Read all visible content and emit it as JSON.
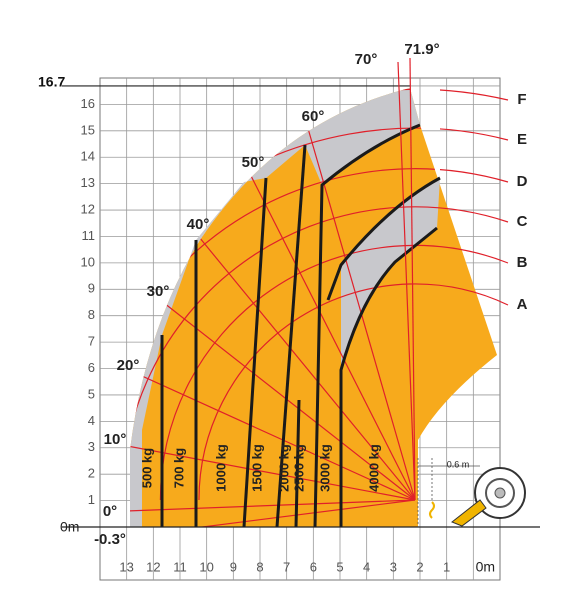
{
  "chart_data": {
    "type": "load-chart",
    "xlim": [
      14,
      -1
    ],
    "ylim": [
      0,
      17
    ],
    "xticks": [
      13,
      12,
      11,
      10,
      9,
      8,
      7,
      6,
      5,
      4,
      3,
      2,
      1,
      {
        "value": 0,
        "label": "0m"
      }
    ],
    "yticks": [
      {
        "value": 0,
        "label": "0m"
      },
      1,
      2,
      3,
      4,
      5,
      6,
      7,
      8,
      9,
      10,
      11,
      12,
      13,
      14,
      15,
      16,
      {
        "value": 16.7,
        "label": "16.7"
      }
    ],
    "grid": true,
    "angle_labels": [
      "-0.3°",
      "0°",
      "10°",
      "20°",
      "30°",
      "40°",
      "50°",
      "60°",
      "70°",
      "71.9°"
    ],
    "boom_labels": [
      "A",
      "B",
      "C",
      "D",
      "E",
      "F"
    ],
    "load_labels": [
      "500 kg",
      "700 kg",
      "1000 kg",
      "1500 kg",
      "2000 kg",
      "2500 kg",
      "3000 kg",
      "4000 kg"
    ],
    "annotation": "0.6 m",
    "load_color": "#f7aa1c",
    "reduced_color": "#c8c8cc",
    "line_color": "#e0202a"
  }
}
